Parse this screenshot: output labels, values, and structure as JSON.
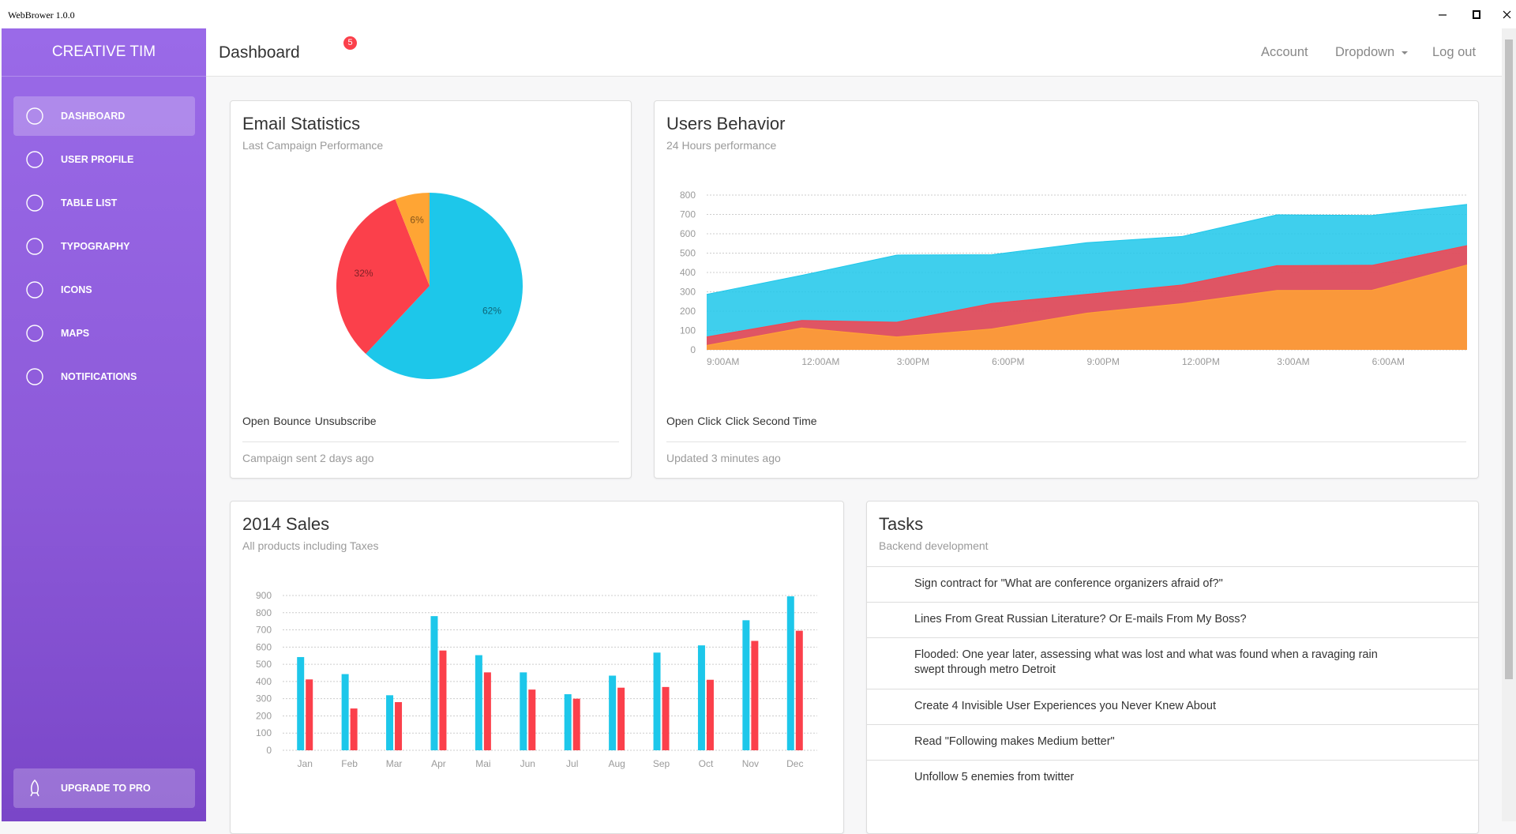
{
  "window": {
    "title": "WebBrower 1.0.0"
  },
  "sidebar": {
    "brand": "CREATIVE TIM",
    "items": [
      "DASHBOARD",
      "USER PROFILE",
      "TABLE LIST",
      "TYPOGRAPHY",
      "ICONS",
      "MAPS",
      "NOTIFICATIONS"
    ],
    "upgrade": "UPGRADE TO PRO"
  },
  "navbar": {
    "title": "Dashboard",
    "badge": 5,
    "links": [
      "Account",
      "Dropdown",
      "Log out"
    ]
  },
  "chart_data": [
    {
      "type": "pie",
      "title": "Email Statistics",
      "subtitle": "Last Campaign Performance",
      "categories": [
        "Open",
        "Bounce",
        "Unsubscribe"
      ],
      "values": [
        62,
        32,
        6
      ],
      "value_labels": [
        "62%",
        "32%",
        "6%"
      ],
      "colors": [
        "#1dc7ea",
        "#fb404b",
        "#ffa534"
      ],
      "footer": "Campaign sent 2 days ago"
    },
    {
      "type": "area",
      "title": "Users Behavior",
      "subtitle": "24 Hours performance",
      "categories": [
        "9:00AM",
        "12:00AM",
        "3:00PM",
        "6:00PM",
        "9:00PM",
        "12:00PM",
        "3:00AM",
        "6:00AM",
        null
      ],
      "series": [
        {
          "name": "Open",
          "color": "#1dc7ea",
          "values": [
            287,
            385,
            490,
            492,
            554,
            586,
            698,
            695,
            752
          ]
        },
        {
          "name": "Click",
          "color": "#fb404b",
          "values": [
            67,
            152,
            143,
            240,
            287,
            335,
            435,
            437,
            539
          ]
        },
        {
          "name": "Click Second Time",
          "color": "#ffa534",
          "values": [
            23,
            113,
            67,
            108,
            190,
            239,
            307,
            308,
            439
          ]
        }
      ],
      "ylim": [
        0,
        800
      ],
      "yticks": [
        0,
        100,
        200,
        300,
        400,
        500,
        600,
        700,
        800
      ],
      "grid": true,
      "footer": "Updated 3 minutes ago"
    },
    {
      "type": "bar",
      "title": "2014 Sales",
      "subtitle": "All products including Taxes",
      "categories": [
        "Jan",
        "Feb",
        "Mar",
        "Apr",
        "Mai",
        "Jun",
        "Jul",
        "Aug",
        "Sep",
        "Oct",
        "Nov",
        "Dec"
      ],
      "series": [
        {
          "color": "#1dc7ea",
          "values": [
            542,
            443,
            320,
            780,
            553,
            453,
            326,
            434,
            568,
            610,
            756,
            895
          ]
        },
        {
          "color": "#fb404b",
          "values": [
            412,
            243,
            280,
            580,
            453,
            353,
            300,
            364,
            368,
            410,
            636,
            695
          ]
        }
      ],
      "ylim": [
        0,
        900
      ],
      "yticks": [
        0,
        100,
        200,
        300,
        400,
        500,
        600,
        700,
        800,
        900
      ],
      "grid": true
    }
  ],
  "tasks": {
    "title": "Tasks",
    "subtitle": "Backend development",
    "items": [
      "Sign contract for \"What are conference organizers afraid of?\"",
      "Lines From Great Russian Literature? Or E-mails From My Boss?",
      "Flooded: One year later, assessing what was lost and what was found when a ravaging rain swept through metro Detroit",
      "Create 4 Invisible User Experiences you Never Knew About",
      "Read \"Following makes Medium better\"",
      "Unfollow 5 enemies from twitter"
    ]
  }
}
